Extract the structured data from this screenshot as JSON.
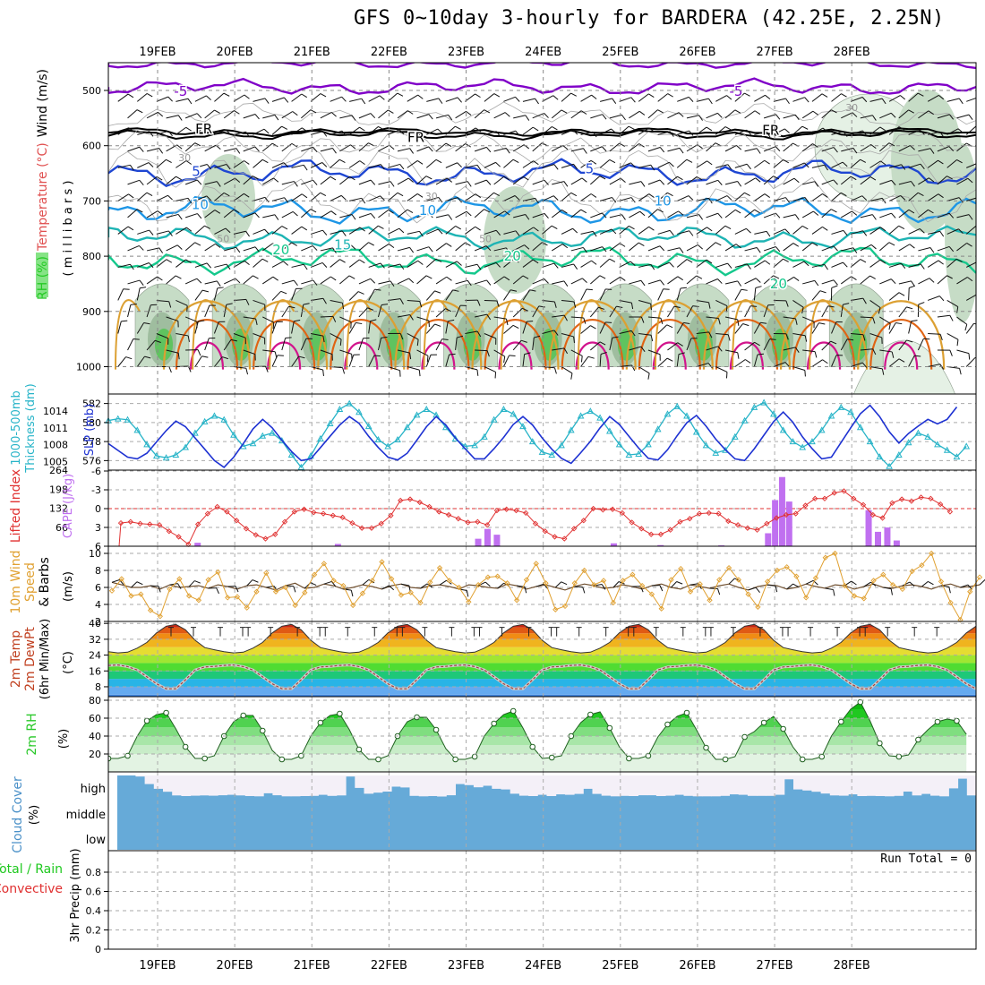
{
  "title": "GFS 0~10day 3-hourly for BARDERA (42.25E, 2.25N)",
  "dates": [
    "19FEB",
    "20FEB",
    "21FEB",
    "22FEB",
    "23FEB",
    "24FEB",
    "25FEB",
    "26FEB",
    "27FEB",
    "28FEB"
  ],
  "colors": {
    "rh_fill": [
      "#e5f1e5",
      "#c6dcc6",
      "#9fbd9f",
      "#5fc35f"
    ],
    "temp_contours": {
      "-5": "#8000c8",
      "FR": "#000000",
      "5": "#1e46d2",
      "10": "#1e96e6",
      "15": "#1eb4b4",
      "20": "#14c88c",
      "25": "#dca032",
      "30": "#e06414",
      "35": "#d2148c"
    },
    "slp": "#1e32d2",
    "thickness": "#28b4c8",
    "lifted_index": "#e03030",
    "cape": "#c070f0",
    "wind_speed": "#e0a030",
    "wind_barb": "#705030",
    "rh2m_fill": "#28c828",
    "cloud": "#66aad8",
    "cloud_clear": "#f4f0f8",
    "temp_bands": [
      "#3c82dc",
      "#64aaf0",
      "#28b4e6",
      "#1ec878",
      "#50dc32",
      "#a0e632",
      "#e6dc32",
      "#f0b41e",
      "#f08c14",
      "#e05a14",
      "#c82814",
      "#961410"
    ]
  },
  "chart_data": [
    {
      "id": "upper_air",
      "type": "contour",
      "ylabel_parts": [
        "RH (%)",
        "Temperature (°C)",
        "Wind (m/s)"
      ],
      "yunit": "( m i l l i b a r s )",
      "yticks": [
        500,
        600,
        700,
        800,
        900,
        1000
      ],
      "ylim": [
        450,
        1050
      ],
      "contour_labels": [
        {
          "text": "-5",
          "t": 0.3,
          "p": 510,
          "color": "-5"
        },
        {
          "text": "-5",
          "t": 7.5,
          "p": 510,
          "color": "-5"
        },
        {
          "text": "FR",
          "t": 0.6,
          "p": 578,
          "color": "FR"
        },
        {
          "text": "FR",
          "t": 3.35,
          "p": 593,
          "color": "FR"
        },
        {
          "text": "FR",
          "t": 7.95,
          "p": 580,
          "color": "FR"
        },
        {
          "text": "5",
          "t": 0.5,
          "p": 655,
          "color": "5"
        },
        {
          "text": "5",
          "t": 5.6,
          "p": 650,
          "color": "5"
        },
        {
          "text": "10",
          "t": 0.55,
          "p": 715,
          "color": "10"
        },
        {
          "text": "10",
          "t": 3.5,
          "p": 725,
          "color": "10"
        },
        {
          "text": "10",
          "t": 6.55,
          "p": 708,
          "color": "10"
        },
        {
          "text": "15",
          "t": 2.4,
          "p": 788,
          "color": "15"
        },
        {
          "text": "20",
          "t": 1.6,
          "p": 797,
          "color": "20"
        },
        {
          "text": "20",
          "t": 4.6,
          "p": 808,
          "color": "20"
        },
        {
          "text": "20",
          "t": 8.05,
          "p": 858,
          "color": "20"
        }
      ],
      "rh_labels": [
        {
          "text": "30",
          "t": 0.35,
          "p": 628
        },
        {
          "text": "30",
          "t": 3.55,
          "p": 698
        },
        {
          "text": "30",
          "t": 9.0,
          "p": 537
        },
        {
          "text": "50",
          "t": 0.85,
          "p": 775
        },
        {
          "text": "50",
          "t": 4.25,
          "p": 775
        }
      ]
    },
    {
      "id": "slp_thickness",
      "type": "line",
      "ylabel_left": [
        "1000-500mb",
        "Thickness (dm)"
      ],
      "ylabel_right": "SLP (mb)",
      "yticks_left": [
        576,
        578,
        580,
        582
      ],
      "yticks_right": [
        1005,
        1008,
        1011,
        1014
      ],
      "ylim_left": [
        575,
        583
      ],
      "ylim_right": [
        1003.5,
        1017
      ],
      "series": [
        {
          "name": "SLP",
          "axis": "right",
          "values": [
            1008.2,
            1007,
            1005.8,
            1005.5,
            1006.5,
            1008.5,
            1010.5,
            1012.2,
            1011.2,
            1009.2,
            1007.2,
            1005.2,
            1004,
            1005.8,
            1008.2,
            1010.8,
            1012.5,
            1011,
            1008.8,
            1006.8,
            1005.2,
            1005.5,
            1007.5,
            1009.5,
            1011.5,
            1013,
            1011.8,
            1009.5,
            1007.5,
            1005.8,
            1005.3,
            1006.5,
            1008.8,
            1011.2,
            1013,
            1011.5,
            1009.2,
            1007.3,
            1005.5,
            1005.5,
            1007.3,
            1009.3,
            1011.6,
            1013,
            1011.5,
            1009.2,
            1007.2,
            1005.6,
            1004.7,
            1006.6,
            1008.6,
            1011,
            1013,
            1011.6,
            1009.5,
            1007.4,
            1005.6,
            1005.3,
            1007.1,
            1009.6,
            1011.9,
            1013.2,
            1011.3,
            1009,
            1007.1,
            1005.5,
            1005.2,
            1007.3,
            1009.7,
            1012.1,
            1013.8,
            1012,
            1009.4,
            1007.3,
            1005.5,
            1005.8,
            1008.4,
            1011,
            1013.5,
            1015,
            1013,
            1010.3,
            1008.3,
            1010,
            1011.3,
            1012.5,
            1011.7,
            1012.5,
            1014.7
          ]
        },
        {
          "name": "Thickness",
          "axis": "left",
          "values": [
            580.2,
            580.4,
            580.3,
            579.2,
            577.7,
            576.5,
            576.3,
            576.6,
            577.4,
            578.9,
            580.1,
            580.7,
            580.3,
            578.7,
            577.5,
            577.8,
            578.6,
            578.9,
            578.1,
            576.6,
            575.3,
            576.5,
            578.3,
            579.9,
            581.4,
            582,
            581.1,
            579.6,
            578.2,
            577.5,
            578.2,
            579.5,
            580.8,
            581.4,
            580.8,
            579.5,
            578.3,
            577.5,
            577.6,
            578.5,
            580.3,
            581.4,
            580.9,
            579.6,
            578,
            576.9,
            576.6,
            577.6,
            579.2,
            580.7,
            581.2,
            580.5,
            579.1,
            577.7,
            576.6,
            576.7,
            577.7,
            579.3,
            580.9,
            581.7,
            580.7,
            579,
            577.6,
            576.8,
            577.1,
            578.5,
            580.2,
            581.6,
            582.1,
            580.9,
            579.2,
            578,
            577.4,
            578,
            579.2,
            580.7,
            581.6,
            581.1,
            579.5,
            578,
            576.4,
            575.4,
            576.6,
            577.9,
            578.9,
            578.5,
            577.7,
            577.1,
            576.4,
            577.5
          ]
        }
      ]
    },
    {
      "id": "lifted_index_cape",
      "type": "line+bar",
      "ylabel_left": "Lifted Index",
      "ylabel_right": "CAPE (J/kg)",
      "yticks_left": [
        -6,
        -3,
        0,
        3,
        6
      ],
      "yticks_right": [
        66,
        132,
        198,
        264
      ],
      "ylim_left": [
        6,
        -6
      ],
      "ylim_right": [
        0,
        264
      ],
      "series": [
        {
          "name": "Lifted Index",
          "axis": "left",
          "t0": 0.45,
          "values": [
            2.3,
            2.1,
            2.4,
            2.5,
            2.6,
            3.6,
            4.5,
            5.7,
            2.5,
            0.8,
            -0.3,
            0.5,
            1.9,
            3.2,
            4.2,
            4.8,
            4.1,
            2.1,
            0.5,
            0.1,
            0.6,
            0.8,
            1.1,
            1.4,
            2.3,
            3.1,
            3.1,
            2.4,
            1.1,
            -1.3,
            -1.5,
            -1.0,
            -0.3,
            0.5,
            1.0,
            1.6,
            2.2,
            2.1,
            2.6,
            0.3,
            0.1,
            0.3,
            0.7,
            2.4,
            3.6,
            4.5,
            4.8,
            3.2,
            1.9,
            0.0,
            0.2,
            0.1,
            0.7,
            2.2,
            3.2,
            4.1,
            4.1,
            3.4,
            2.1,
            1.6,
            0.8,
            0.7,
            0.8,
            2.0,
            2.6,
            3.1,
            3.4,
            2.4,
            1.5,
            1.0,
            0.8,
            -0.5,
            -1.6,
            -1.6,
            -2.5,
            -2.8,
            -1.6,
            -0.6,
            1.0,
            1.5,
            -0.9,
            -1.5,
            -1.2,
            -1.8,
            -1.6,
            -0.7,
            0.5
          ]
        },
        {
          "name": "CAPE",
          "axis": "right",
          "values": [
            {
              "t": 1.9,
              "v": 12
            },
            {
              "t": 4.9,
              "v": 8
            },
            {
              "t": 7.9,
              "v": 26
            },
            {
              "t": 8.1,
              "v": 60
            },
            {
              "t": 8.3,
              "v": 40
            },
            {
              "t": 10.8,
              "v": 10
            },
            {
              "t": 11.8,
              "v": 4
            },
            {
              "t": 13.1,
              "v": 3
            },
            {
              "t": 14.1,
              "v": 45
            },
            {
              "t": 14.25,
              "v": 160
            },
            {
              "t": 14.4,
              "v": 240
            },
            {
              "t": 14.55,
              "v": 155
            },
            {
              "t": 16.25,
              "v": 125
            },
            {
              "t": 16.45,
              "v": 50
            },
            {
              "t": 16.65,
              "v": 65
            },
            {
              "t": 16.85,
              "v": 20
            }
          ]
        }
      ]
    },
    {
      "id": "wind10m",
      "type": "line",
      "ylabel_left": [
        "10m Wind",
        "Speed",
        "& Barbs"
      ],
      "yunit": "(m/s)",
      "yticks": [
        2,
        4,
        6,
        8,
        10
      ],
      "ylim": [
        2,
        11
      ],
      "series": [
        {
          "name": "10m Wind Speed",
          "values": [
            5.6,
            7,
            5,
            5.2,
            3.3,
            2.6,
            5.8,
            7,
            5,
            4.5,
            6.9,
            7.8,
            4.8,
            4.9,
            3.6,
            5.5,
            7.7,
            5.5,
            6,
            3.9,
            5.4,
            7.5,
            8.8,
            6.8,
            6.2,
            3.9,
            5.3,
            6.8,
            9,
            7,
            5.1,
            5.4,
            4.2,
            6.6,
            8.3,
            6.8,
            6,
            4.3,
            6.3,
            7.2,
            7.3,
            6.5,
            4.5,
            6.9,
            8.8,
            6.5,
            3.4,
            3.8,
            6.5,
            8,
            6.3,
            6.8,
            4.2,
            6.8,
            7.5,
            6.2,
            5.2,
            3.5,
            6.9,
            8.2,
            5.5,
            6.4,
            4.5,
            6.9,
            8.3,
            6.9,
            5.2,
            3.7,
            6.7,
            8,
            8.4,
            7.3,
            4.8,
            7.1,
            9.5,
            10,
            6.2,
            5,
            4.7,
            6.8,
            7.5,
            6.3,
            5.8,
            7.9,
            8.6,
            10,
            6.7,
            4.2,
            2.2,
            5.5,
            7.2
          ]
        },
        {
          "name": "Barbs",
          "values": [
            6.6,
            6.3,
            6,
            6,
            6.2,
            5.8,
            6.3,
            6,
            6.1,
            6.2,
            5.9,
            6.3,
            6.1,
            5.8,
            6.2,
            6.3,
            6,
            5.7,
            6.2,
            6.5,
            5.9,
            6,
            6.4,
            6.2,
            5.8,
            6,
            6.3,
            6.1,
            5.8,
            6.2,
            6.4,
            6,
            5.9,
            6.2,
            6.3,
            6.1,
            5.8,
            6.3,
            6.2,
            6,
            5.9,
            6.4,
            6.2,
            5.8,
            6.1,
            6.3,
            6,
            5.7,
            6.1,
            6.4,
            6.2,
            5.9,
            6,
            6.3,
            6.1,
            5.8,
            6.2,
            6.4,
            6,
            5.8,
            6.3,
            6.1,
            5.9,
            6.2,
            6.4,
            6,
            5.7,
            6.1,
            6.3,
            6.2,
            5.8,
            6,
            6.4,
            6.1,
            5.9,
            6.3,
            6.2,
            5.8,
            6.1,
            6.4,
            6,
            5.9,
            6.2,
            6.3,
            6.1,
            5.8,
            6.2,
            6.4,
            6,
            6.1,
            6.3
          ]
        }
      ]
    },
    {
      "id": "temp2m",
      "type": "area",
      "ylabel_left": [
        "2m Temp",
        "2m DewPt",
        "(6hr Min/Max)"
      ],
      "yunit": "(°C)",
      "yticks": [
        8,
        16,
        24,
        32,
        40
      ],
      "ylim": [
        3,
        41
      ],
      "temp_band_edges": [
        0,
        4,
        8,
        12,
        16,
        20,
        24,
        28,
        32,
        35,
        38,
        41
      ],
      "series": [
        {
          "name": "2m Temp",
          "pattern": [
            27.8,
            26.7,
            25.7,
            25.1,
            25.5,
            27.5,
            30.4,
            35.2,
            38.6,
            39.5,
            36.8,
            31.5
          ]
        },
        {
          "name": "2m DewPt",
          "pattern": [
            18.0,
            18.3,
            18.8,
            19.0,
            18.2,
            16.5,
            13.0,
            9.5,
            7.0,
            7.0,
            11.5,
            16.5
          ]
        }
      ]
    },
    {
      "id": "rh2m",
      "type": "area",
      "ylabel_left": "2m RH",
      "yunit": "(%)",
      "yticks": [
        20,
        40,
        60,
        80
      ],
      "ylim": [
        0,
        82
      ],
      "series": [
        {
          "name": "2m RH",
          "values": [
            15,
            15,
            18,
            40,
            57,
            64,
            66,
            48,
            28,
            15,
            15,
            18,
            40,
            56,
            63,
            63,
            46,
            24,
            14,
            14,
            18,
            40,
            55,
            63,
            65,
            47,
            25,
            14,
            14,
            18,
            40,
            56,
            61,
            61,
            47,
            26,
            14,
            14,
            17,
            40,
            54,
            64,
            68,
            49,
            28,
            15,
            16,
            18,
            40,
            55,
            64,
            67,
            49,
            28,
            15,
            15,
            18,
            39,
            53,
            62,
            66,
            47,
            27,
            14,
            14,
            17,
            39,
            45,
            55,
            62,
            48,
            28,
            14,
            14,
            17,
            40,
            56,
            70,
            78,
            57,
            32,
            18,
            17,
            19,
            36,
            47,
            56,
            59,
            57,
            42
          ]
        }
      ]
    },
    {
      "id": "cloud_cover",
      "type": "area",
      "ylabel_left": "Cloud Cover",
      "yunit": "(%)",
      "level_labels": [
        "high",
        "middle",
        "low"
      ],
      "series": [
        {
          "name": "high cloud",
          "values": [
            100,
            100,
            95,
            60,
            38,
            24,
            7,
            4,
            6,
            7,
            6,
            8,
            10,
            7,
            4,
            3,
            17,
            8,
            3,
            3,
            4,
            5,
            10,
            5,
            7,
            95,
            42,
            15,
            20,
            25,
            48,
            44,
            5,
            3,
            4,
            2,
            8,
            60,
            55,
            45,
            52,
            38,
            35,
            15,
            6,
            4,
            10,
            4,
            12,
            10,
            14,
            38,
            14,
            6,
            3,
            5,
            4,
            8,
            8,
            4,
            6,
            10,
            5,
            3,
            3,
            3,
            5,
            12,
            10,
            5,
            5,
            5,
            10,
            82,
            35,
            30,
            24,
            16,
            7,
            6,
            12,
            4,
            5,
            4,
            3,
            5,
            25,
            7,
            14,
            6,
            3,
            40,
            85,
            7
          ]
        },
        {
          "name": "middle cloud",
          "values": []
        },
        {
          "name": "low cloud",
          "values": []
        }
      ]
    },
    {
      "id": "precip3hr",
      "type": "bar",
      "ylabel_left": [
        "3hr Precip (mm)"
      ],
      "legend": [
        "Total / Rain",
        "Convective"
      ],
      "yticks": [
        0,
        0.2,
        0.4,
        0.6,
        0.8
      ],
      "ylim": [
        0,
        0.95
      ],
      "run_total_label": "Run Total = 0",
      "series": [
        {
          "name": "Total / Rain",
          "values": []
        },
        {
          "name": "Convective",
          "values": []
        }
      ]
    }
  ]
}
